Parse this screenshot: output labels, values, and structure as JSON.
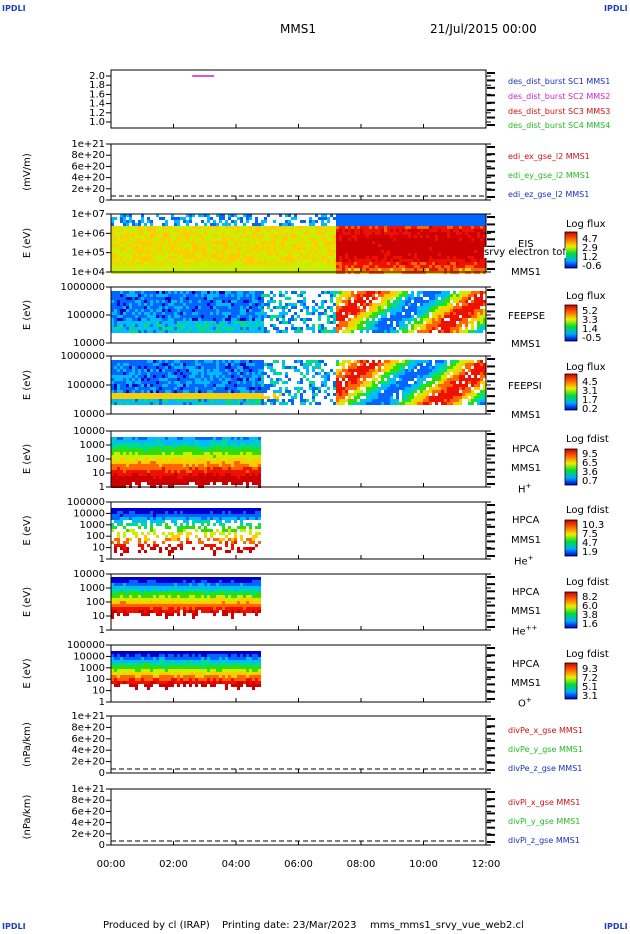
{
  "header": {
    "corner_tl": "IPDLI",
    "corner_tr": "IPDLI",
    "corner_bl": "IPDLI",
    "corner_br": "IPDLI",
    "mission": "MMS1",
    "date": "21/Jul/2015 00:00"
  },
  "footer": {
    "produced": "Produced by cl (IRAP)",
    "printing": "Printing date: 23/Mar/2023",
    "file": "mms_mms1_srvy_vue_web2.cl"
  },
  "colors": {
    "blue": "#1a2fbf",
    "magenta": "#cc22cc",
    "red": "#cc1111",
    "green": "#22bb22"
  },
  "chart_data": [
    {
      "type": "line",
      "id": "des-dist-burst",
      "ylabel": "",
      "yticks": [
        "2.0",
        "1.8",
        "1.6",
        "1.4",
        "1.2",
        "1.0"
      ],
      "ylim": [
        0.9,
        2.1
      ],
      "series": [
        {
          "name": "des_dist_burst SC1 MMS1",
          "color": "#1a2fbf",
          "x": [],
          "y": []
        },
        {
          "name": "des_dist_burst SC2 MMS2",
          "color": "#cc22cc",
          "x": [
            2.6,
            3.3
          ],
          "y": [
            2.0,
            2.0
          ]
        },
        {
          "name": "des_dist_burst SC3 MMS3",
          "color": "#cc1111",
          "x": [],
          "y": []
        },
        {
          "name": "des_dist_burst SC4 MMS4",
          "color": "#22bb22",
          "x": [],
          "y": []
        }
      ]
    },
    {
      "type": "line",
      "id": "edi-e",
      "ylabel": "(mV/m)",
      "yticks": [
        "1e+21",
        "8e+20",
        "6e+20",
        "4e+20",
        "2e+20",
        "0"
      ],
      "series": [
        {
          "name": "edi_ex_gse_l2 MMS1",
          "color": "#cc1111"
        },
        {
          "name": "edi_ey_gse_l2 MMS1",
          "color": "#22bb22"
        },
        {
          "name": "edi_ez_gse_l2 MMS1",
          "color": "#1a2fbf"
        }
      ]
    },
    {
      "type": "heatmap",
      "id": "eis",
      "ylabel": "E (eV)",
      "yticks": [
        "1e+07",
        "1e+06",
        "1e+05",
        "1e+04"
      ],
      "labels": [
        "EIS",
        "MMS1"
      ],
      "overlay_text": "srvy electron tof",
      "colorbar": {
        "title": "Log flux",
        "values": [
          "4.7",
          "2.9",
          "1.2",
          "-0.6"
        ]
      }
    },
    {
      "type": "heatmap",
      "id": "feepse",
      "ylabel": "E (eV)",
      "yticks": [
        "1000000",
        "100000",
        "10000"
      ],
      "labels": [
        "FEEPSE",
        "MMS1"
      ],
      "colorbar": {
        "title": "Log flux",
        "values": [
          "5.2",
          "3.3",
          "1.4",
          "-0.5"
        ]
      }
    },
    {
      "type": "heatmap",
      "id": "feepsi",
      "ylabel": "E (eV)",
      "yticks": [
        "1000000",
        "100000",
        "10000"
      ],
      "labels": [
        "FEEPSI",
        "MMS1"
      ],
      "colorbar": {
        "title": "Log flux",
        "values": [
          "4.5",
          "3.1",
          "1.7",
          "0.2"
        ]
      }
    },
    {
      "type": "heatmap",
      "id": "hpca-h",
      "ylabel": "E (eV)",
      "yticks": [
        "10000",
        "1000",
        "100",
        "10",
        "1"
      ],
      "labels": [
        "HPCA",
        "MMS1"
      ],
      "species": "H",
      "species_sup": "+",
      "colorbar": {
        "title": "Log fdist",
        "values": [
          "9.5",
          "6.5",
          "3.6",
          "0.7"
        ]
      }
    },
    {
      "type": "heatmap",
      "id": "hpca-he",
      "ylabel": "E (eV)",
      "yticks": [
        "100000",
        "10000",
        "1000",
        "100",
        "10",
        "1"
      ],
      "labels": [
        "HPCA",
        "MMS1"
      ],
      "species": "He",
      "species_sup": "+",
      "colorbar": {
        "title": "Log fdist",
        "values": [
          "10.3",
          "7.5",
          "4.7",
          "1.9"
        ]
      }
    },
    {
      "type": "heatmap",
      "id": "hpca-hepp",
      "ylabel": "E (eV)",
      "yticks": [
        "10000",
        "1000",
        "100",
        "10",
        "1"
      ],
      "labels": [
        "HPCA",
        "MMS1"
      ],
      "species": "He",
      "species_sup": "++",
      "colorbar": {
        "title": "Log fdist",
        "values": [
          "8.2",
          "6.0",
          "3.8",
          "1.6"
        ]
      }
    },
    {
      "type": "heatmap",
      "id": "hpca-o",
      "ylabel": "E (eV)",
      "yticks": [
        "100000",
        "10000",
        "1000",
        "100",
        "10",
        "1"
      ],
      "labels": [
        "HPCA",
        "MMS1"
      ],
      "species": "O",
      "species_sup": "+",
      "colorbar": {
        "title": "Log fdist",
        "values": [
          "9.3",
          "7.2",
          "5.1",
          "3.1"
        ]
      }
    },
    {
      "type": "line",
      "id": "divpe",
      "ylabel": "(nPa/km)",
      "yticks": [
        "1e+21",
        "8e+20",
        "6e+20",
        "4e+20",
        "2e+20",
        "0"
      ],
      "series": [
        {
          "name": "divPe_x_gse MMS1",
          "color": "#cc1111"
        },
        {
          "name": "divPe_y_gse MMS1",
          "color": "#22bb22"
        },
        {
          "name": "divPe_z_gse MMS1",
          "color": "#1a2fbf"
        }
      ]
    },
    {
      "type": "line",
      "id": "divpi",
      "ylabel": "(nPa/km)",
      "yticks": [
        "1e+21",
        "8e+20",
        "6e+20",
        "4e+20",
        "2e+20",
        "0"
      ],
      "series": [
        {
          "name": "divPi_x_gse MMS1",
          "color": "#cc1111"
        },
        {
          "name": "divPi_y_gse MMS1",
          "color": "#22bb22"
        },
        {
          "name": "divPi_z_gse MMS1",
          "color": "#1a2fbf"
        }
      ]
    }
  ],
  "xaxis": {
    "ticks": [
      "00:00",
      "02:00",
      "04:00",
      "06:00",
      "08:00",
      "10:00",
      "12:00"
    ],
    "xlim": [
      0,
      12
    ]
  }
}
